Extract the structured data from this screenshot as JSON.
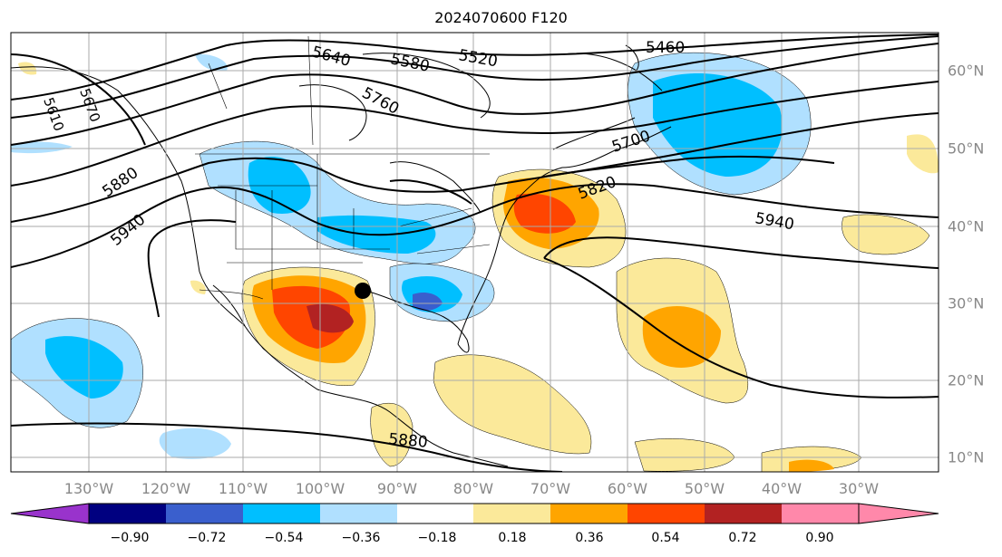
{
  "title": "2024070600 F120",
  "lon_labels": [
    "130°W",
    "120°W",
    "110°W",
    "100°W",
    "90°W",
    "80°W",
    "70°W",
    "60°W",
    "50°W",
    "40°W",
    "30°W"
  ],
  "lat_labels": [
    "60°N",
    "50°N",
    "40°N",
    "30°N",
    "20°N",
    "10°N"
  ],
  "contour_labels": [
    "5460",
    "5520",
    "5580",
    "5640",
    "5760",
    "5700",
    "5820",
    "5880",
    "5940",
    "5940",
    "5880",
    "5610",
    "5670"
  ],
  "colorbar": {
    "labels": [
      "−0.90",
      "−0.72",
      "−0.54",
      "−0.36",
      "−0.18",
      "0.18",
      "0.36",
      "0.54",
      "0.72",
      "0.90"
    ],
    "colors": [
      "#9933cc",
      "#000080",
      "#3a5fcd",
      "#00bfff",
      "#b0e0ff",
      "#ffffff",
      "#fbe99a",
      "#ffa500",
      "#ff4500",
      "#b22222",
      "#ff88aa"
    ]
  },
  "marker": "storm-center"
}
